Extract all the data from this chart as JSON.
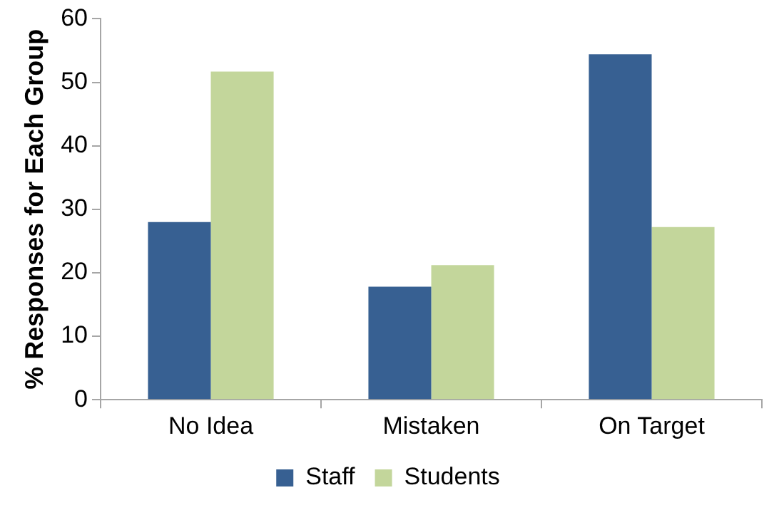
{
  "chart_data": {
    "type": "bar",
    "ylabel": "% Responses for Each Group",
    "categories": [
      "No Idea",
      "Mistaken",
      "On Target"
    ],
    "series": [
      {
        "name": "Staff",
        "color": "#376092",
        "values": [
          28,
          17.8,
          54.4
        ]
      },
      {
        "name": "Students",
        "color": "#c3d69b",
        "values": [
          51.7,
          21.2,
          27.2
        ]
      }
    ],
    "ylim": [
      0,
      60
    ],
    "yticks": [
      0,
      10,
      20,
      30,
      40,
      50,
      60
    ],
    "grid": false,
    "legend": "bottom"
  }
}
